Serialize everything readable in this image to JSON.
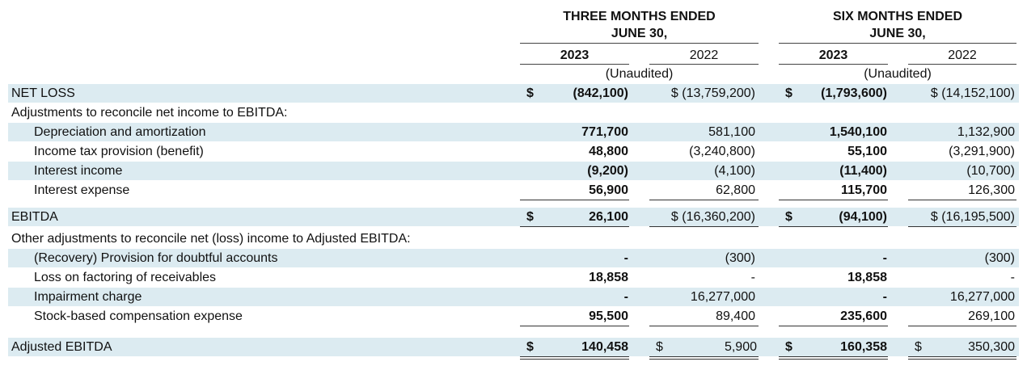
{
  "header": {
    "three_months_line1": "THREE MONTHS ENDED",
    "three_months_line2": "JUNE 30,",
    "six_months_line1": "SIX MONTHS ENDED",
    "six_months_line2": "JUNE 30,",
    "year_2023": "2023",
    "year_2022": "2022",
    "unaudited": "(Unaudited)"
  },
  "rows": {
    "net_loss": {
      "label": "NET LOSS",
      "tm_cur_dollar": "$",
      "tm_cur": "(842,100)",
      "tm_prev": "$ (13,759,200)",
      "sm_cur_dollar": "$",
      "sm_cur": "(1,793,600)",
      "sm_prev": "$ (14,152,100)"
    },
    "adj_header": {
      "label": "Adjustments to reconcile net income to EBITDA:"
    },
    "depreciation": {
      "label": "Depreciation and amortization",
      "tm_cur": "771,700",
      "tm_prev": "581,100",
      "sm_cur": "1,540,100",
      "sm_prev": "1,132,900"
    },
    "income_tax": {
      "label": "Income tax provision (benefit)",
      "tm_cur": "48,800",
      "tm_prev": "(3,240,800)",
      "sm_cur": "55,100",
      "sm_prev": "(3,291,900)"
    },
    "interest_income": {
      "label": "Interest income",
      "tm_cur": "(9,200)",
      "tm_prev": "(4,100)",
      "sm_cur": "(11,400)",
      "sm_prev": "(10,700)"
    },
    "interest_expense": {
      "label": "Interest expense",
      "tm_cur": "56,900",
      "tm_prev": "62,800",
      "sm_cur": "115,700",
      "sm_prev": "126,300"
    },
    "ebitda": {
      "label": "EBITDA",
      "tm_cur_dollar": "$",
      "tm_cur": "26,100",
      "tm_prev": "$ (16,360,200)",
      "sm_cur_dollar": "$",
      "sm_cur": "(94,100)",
      "sm_prev": "$ (16,195,500)"
    },
    "other_header": {
      "label": "Other adjustments to reconcile net (loss) income to Adjusted EBITDA:"
    },
    "recovery": {
      "label": "(Recovery) Provision for doubtful accounts",
      "tm_cur": "-",
      "tm_prev": "(300)",
      "sm_cur": "-",
      "sm_prev": "(300)"
    },
    "factoring": {
      "label": "Loss on factoring of receivables",
      "tm_cur": "18,858",
      "tm_prev": "-",
      "sm_cur": "18,858",
      "sm_prev": "-"
    },
    "impairment": {
      "label": "Impairment charge",
      "tm_cur": "-",
      "tm_prev": "16,277,000",
      "sm_cur": "-",
      "sm_prev": "16,277,000"
    },
    "stock_comp": {
      "label": "Stock-based compensation expense",
      "tm_cur": "95,500",
      "tm_prev": "89,400",
      "sm_cur": "235,600",
      "sm_prev": "269,100"
    },
    "adj_ebitda": {
      "label": "Adjusted EBITDA",
      "tm_cur_dollar": "$",
      "tm_cur": "140,458",
      "tm_prev_dollar": "$",
      "tm_prev": "5,900",
      "sm_cur_dollar": "$",
      "sm_cur": "160,358",
      "sm_prev_dollar": "$",
      "sm_prev": "350,300"
    }
  },
  "colors": {
    "row_shade": "#dcebf1"
  }
}
